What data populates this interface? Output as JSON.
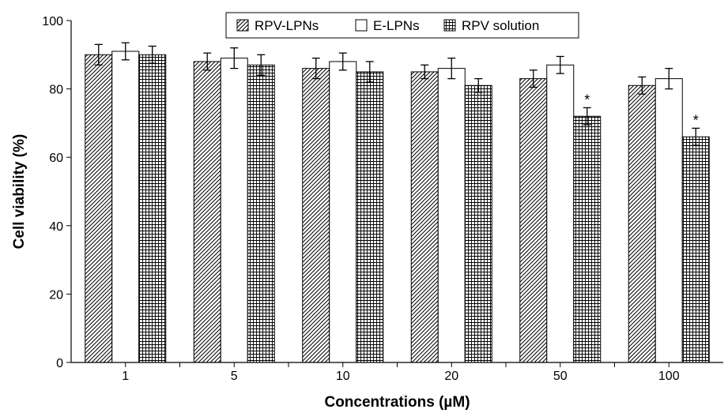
{
  "chart_data": {
    "type": "bar",
    "title": "",
    "xlabel": "Concentrations (µM)",
    "ylabel": "Cell viability (%)",
    "ylim": [
      0,
      100
    ],
    "yticks": [
      0,
      20,
      40,
      60,
      80,
      100
    ],
    "categories": [
      "1",
      "5",
      "10",
      "20",
      "50",
      "100"
    ],
    "legend_position": "top-center",
    "series": [
      {
        "name": "RPV-LPNs",
        "pattern": "diagonal-hatch",
        "values": [
          90,
          88,
          86,
          85,
          83,
          81
        ],
        "errors": [
          3,
          2.5,
          3,
          2,
          2.5,
          2.5
        ],
        "significance": [
          "",
          "",
          "",
          "",
          "",
          ""
        ]
      },
      {
        "name": "E-LPNs",
        "pattern": "plain",
        "values": [
          91,
          89,
          88,
          86,
          87,
          83
        ],
        "errors": [
          2.5,
          3,
          2.5,
          3,
          2.5,
          3
        ],
        "significance": [
          "",
          "",
          "",
          "",
          "",
          ""
        ]
      },
      {
        "name": "RPV solution",
        "pattern": "grid",
        "values": [
          90,
          87,
          85,
          81,
          72,
          66
        ],
        "errors": [
          2.5,
          3,
          3,
          2,
          2.5,
          2.5
        ],
        "significance": [
          "",
          "",
          "",
          "",
          "*",
          "*"
        ]
      }
    ]
  }
}
